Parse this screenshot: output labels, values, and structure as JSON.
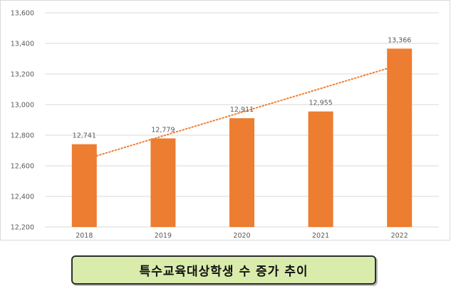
{
  "chart_data": {
    "type": "bar",
    "categories": [
      "2018",
      "2019",
      "2020",
      "2021",
      "2022"
    ],
    "values": [
      12741,
      12779,
      12911,
      12955,
      13366
    ],
    "data_labels": [
      "12,741",
      "12,779",
      "12,911",
      "12,955",
      "13,366"
    ],
    "yticks": [
      "12,200",
      "12,400",
      "12,600",
      "12,800",
      "13,000",
      "13,200",
      "13,400",
      "13,600"
    ],
    "ylim": [
      12200,
      13600
    ],
    "grid": true,
    "trendline": "linear, dotted",
    "colors": {
      "bar": "#ed7d31",
      "trendline": "#ed7d31",
      "grid": "#d9d9d9"
    }
  },
  "caption": "특수교육대상학생 수 증가 추이",
  "caption_colors": {
    "background": "#d9ecab",
    "border": "#2f2f2f"
  }
}
